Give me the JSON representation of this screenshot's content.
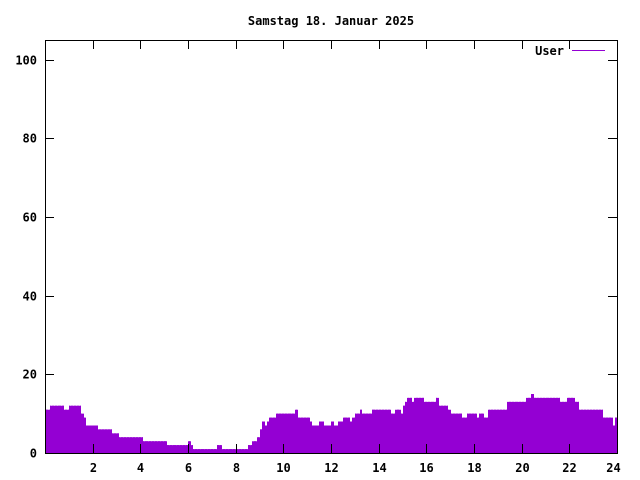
{
  "chart_data": {
    "type": "bar",
    "title": "Samstag 18. Januar 2025",
    "xlabel": "",
    "ylabel": "",
    "xlim": [
      0,
      24
    ],
    "ylim": [
      0,
      105
    ],
    "x_ticks": [
      2,
      4,
      6,
      8,
      10,
      12,
      14,
      16,
      18,
      20,
      22,
      24
    ],
    "y_ticks": [
      0,
      20,
      40,
      60,
      80,
      100
    ],
    "grid": false,
    "legend_position": "top-right",
    "series": [
      {
        "name": "User",
        "color": "#9400d3",
        "points": [
          [
            0.0,
            11
          ],
          [
            0.1,
            11
          ],
          [
            0.2,
            12
          ],
          [
            0.3,
            12
          ],
          [
            0.4,
            12
          ],
          [
            0.5,
            12
          ],
          [
            0.6,
            12
          ],
          [
            0.7,
            12
          ],
          [
            0.8,
            11
          ],
          [
            0.9,
            11
          ],
          [
            1.0,
            12
          ],
          [
            1.1,
            12
          ],
          [
            1.2,
            12
          ],
          [
            1.3,
            12
          ],
          [
            1.4,
            12
          ],
          [
            1.5,
            10
          ],
          [
            1.6,
            9
          ],
          [
            1.7,
            7
          ],
          [
            1.8,
            7
          ],
          [
            1.9,
            7
          ],
          [
            2.0,
            7
          ],
          [
            2.1,
            7
          ],
          [
            2.2,
            6
          ],
          [
            2.3,
            6
          ],
          [
            2.4,
            6
          ],
          [
            2.5,
            6
          ],
          [
            2.6,
            6
          ],
          [
            2.7,
            6
          ],
          [
            2.8,
            5
          ],
          [
            2.9,
            5
          ],
          [
            3.0,
            5
          ],
          [
            3.1,
            4
          ],
          [
            3.2,
            4
          ],
          [
            3.3,
            4
          ],
          [
            3.4,
            4
          ],
          [
            3.5,
            4
          ],
          [
            3.6,
            4
          ],
          [
            3.7,
            4
          ],
          [
            3.8,
            4
          ],
          [
            3.9,
            4
          ],
          [
            4.0,
            4
          ],
          [
            4.1,
            3
          ],
          [
            4.2,
            3
          ],
          [
            4.3,
            3
          ],
          [
            4.4,
            3
          ],
          [
            4.5,
            3
          ],
          [
            4.6,
            3
          ],
          [
            4.7,
            3
          ],
          [
            4.8,
            3
          ],
          [
            4.9,
            3
          ],
          [
            5.0,
            3
          ],
          [
            5.1,
            2
          ],
          [
            5.2,
            2
          ],
          [
            5.3,
            2
          ],
          [
            5.4,
            2
          ],
          [
            5.5,
            2
          ],
          [
            5.6,
            2
          ],
          [
            5.7,
            2
          ],
          [
            5.8,
            2
          ],
          [
            5.9,
            2
          ],
          [
            6.0,
            3
          ],
          [
            6.1,
            2
          ],
          [
            6.2,
            1
          ],
          [
            6.3,
            1
          ],
          [
            6.4,
            1
          ],
          [
            6.5,
            1
          ],
          [
            6.6,
            1
          ],
          [
            6.7,
            1
          ],
          [
            6.8,
            1
          ],
          [
            6.9,
            1
          ],
          [
            7.0,
            1
          ],
          [
            7.1,
            1
          ],
          [
            7.2,
            2
          ],
          [
            7.3,
            2
          ],
          [
            7.4,
            1
          ],
          [
            7.5,
            1
          ],
          [
            7.6,
            1
          ],
          [
            7.7,
            1
          ],
          [
            7.8,
            1
          ],
          [
            7.9,
            1
          ],
          [
            8.0,
            1
          ],
          [
            8.1,
            1
          ],
          [
            8.2,
            1
          ],
          [
            8.3,
            1
          ],
          [
            8.4,
            1
          ],
          [
            8.5,
            2
          ],
          [
            8.6,
            2
          ],
          [
            8.7,
            3
          ],
          [
            8.8,
            3
          ],
          [
            8.9,
            4
          ],
          [
            9.0,
            6
          ],
          [
            9.1,
            8
          ],
          [
            9.2,
            7
          ],
          [
            9.3,
            8
          ],
          [
            9.4,
            9
          ],
          [
            9.5,
            9
          ],
          [
            9.6,
            9
          ],
          [
            9.7,
            10
          ],
          [
            9.8,
            10
          ],
          [
            9.9,
            10
          ],
          [
            10.0,
            10
          ],
          [
            10.1,
            10
          ],
          [
            10.2,
            10
          ],
          [
            10.3,
            10
          ],
          [
            10.4,
            10
          ],
          [
            10.5,
            11
          ],
          [
            10.6,
            9
          ],
          [
            10.7,
            9
          ],
          [
            10.8,
            9
          ],
          [
            10.9,
            9
          ],
          [
            11.0,
            9
          ],
          [
            11.1,
            8
          ],
          [
            11.2,
            7
          ],
          [
            11.3,
            7
          ],
          [
            11.4,
            7
          ],
          [
            11.5,
            8
          ],
          [
            11.6,
            8
          ],
          [
            11.7,
            7
          ],
          [
            11.8,
            7
          ],
          [
            11.9,
            7
          ],
          [
            12.0,
            8
          ],
          [
            12.1,
            7
          ],
          [
            12.2,
            7
          ],
          [
            12.3,
            8
          ],
          [
            12.4,
            8
          ],
          [
            12.5,
            9
          ],
          [
            12.6,
            9
          ],
          [
            12.7,
            9
          ],
          [
            12.8,
            8
          ],
          [
            12.9,
            9
          ],
          [
            13.0,
            10
          ],
          [
            13.1,
            10
          ],
          [
            13.2,
            11
          ],
          [
            13.3,
            10
          ],
          [
            13.4,
            10
          ],
          [
            13.5,
            10
          ],
          [
            13.6,
            10
          ],
          [
            13.7,
            11
          ],
          [
            13.8,
            11
          ],
          [
            13.9,
            11
          ],
          [
            14.0,
            11
          ],
          [
            14.1,
            11
          ],
          [
            14.2,
            11
          ],
          [
            14.3,
            11
          ],
          [
            14.4,
            11
          ],
          [
            14.5,
            10
          ],
          [
            14.6,
            10
          ],
          [
            14.7,
            11
          ],
          [
            14.8,
            11
          ],
          [
            14.9,
            10
          ],
          [
            15.0,
            12
          ],
          [
            15.1,
            13
          ],
          [
            15.2,
            14
          ],
          [
            15.3,
            14
          ],
          [
            15.4,
            13
          ],
          [
            15.5,
            14
          ],
          [
            15.6,
            14
          ],
          [
            15.7,
            14
          ],
          [
            15.8,
            14
          ],
          [
            15.9,
            13
          ],
          [
            16.0,
            13
          ],
          [
            16.1,
            13
          ],
          [
            16.2,
            13
          ],
          [
            16.3,
            13
          ],
          [
            16.4,
            14
          ],
          [
            16.5,
            12
          ],
          [
            16.6,
            12
          ],
          [
            16.7,
            12
          ],
          [
            16.8,
            12
          ],
          [
            16.9,
            11
          ],
          [
            17.0,
            10
          ],
          [
            17.1,
            10
          ],
          [
            17.2,
            10
          ],
          [
            17.3,
            10
          ],
          [
            17.4,
            10
          ],
          [
            17.5,
            9
          ],
          [
            17.6,
            9
          ],
          [
            17.7,
            10
          ],
          [
            17.8,
            10
          ],
          [
            17.9,
            10
          ],
          [
            18.0,
            10
          ],
          [
            18.1,
            9
          ],
          [
            18.2,
            10
          ],
          [
            18.3,
            10
          ],
          [
            18.4,
            9
          ],
          [
            18.5,
            9
          ],
          [
            18.6,
            11
          ],
          [
            18.7,
            11
          ],
          [
            18.8,
            11
          ],
          [
            18.9,
            11
          ],
          [
            19.0,
            11
          ],
          [
            19.1,
            11
          ],
          [
            19.2,
            11
          ],
          [
            19.3,
            11
          ],
          [
            19.4,
            13
          ],
          [
            19.5,
            13
          ],
          [
            19.6,
            13
          ],
          [
            19.7,
            13
          ],
          [
            19.8,
            13
          ],
          [
            19.9,
            13
          ],
          [
            20.0,
            13
          ],
          [
            20.1,
            13
          ],
          [
            20.2,
            14
          ],
          [
            20.3,
            14
          ],
          [
            20.4,
            15
          ],
          [
            20.5,
            14
          ],
          [
            20.6,
            14
          ],
          [
            20.7,
            14
          ],
          [
            20.8,
            14
          ],
          [
            20.9,
            14
          ],
          [
            21.0,
            14
          ],
          [
            21.1,
            14
          ],
          [
            21.2,
            14
          ],
          [
            21.3,
            14
          ],
          [
            21.4,
            14
          ],
          [
            21.5,
            14
          ],
          [
            21.6,
            13
          ],
          [
            21.7,
            13
          ],
          [
            21.8,
            13
          ],
          [
            21.9,
            14
          ],
          [
            22.0,
            14
          ],
          [
            22.1,
            14
          ],
          [
            22.2,
            13
          ],
          [
            22.3,
            13
          ],
          [
            22.4,
            11
          ],
          [
            22.5,
            11
          ],
          [
            22.6,
            11
          ],
          [
            22.7,
            11
          ],
          [
            22.8,
            11
          ],
          [
            22.9,
            11
          ],
          [
            23.0,
            11
          ],
          [
            23.1,
            11
          ],
          [
            23.2,
            11
          ],
          [
            23.3,
            11
          ],
          [
            23.4,
            9
          ],
          [
            23.5,
            9
          ],
          [
            23.6,
            9
          ],
          [
            23.7,
            9
          ],
          [
            23.8,
            7
          ],
          [
            23.9,
            9
          ]
        ]
      }
    ]
  }
}
